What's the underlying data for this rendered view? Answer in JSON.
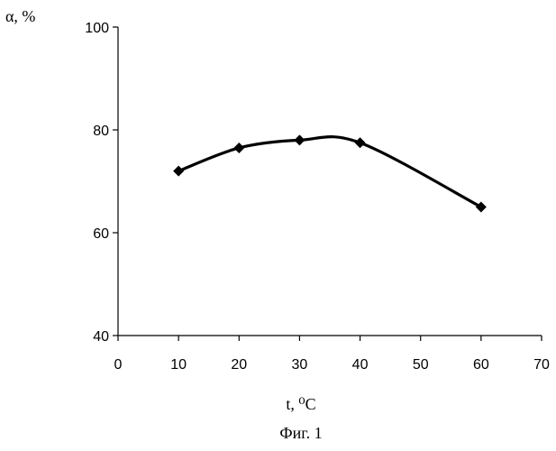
{
  "chart_data": {
    "type": "line",
    "title": "",
    "xlabel": "t, ⁰C",
    "ylabel": "α, %",
    "caption": "Фиг. 1",
    "x": [
      10,
      20,
      30,
      40,
      60
    ],
    "series": [
      {
        "values": [
          72,
          76.5,
          78,
          77.5,
          65
        ]
      }
    ],
    "xlim": [
      0,
      70
    ],
    "ylim": [
      40,
      100
    ],
    "x_ticks": [
      0,
      10,
      20,
      30,
      40,
      50,
      60,
      70
    ],
    "y_ticks": [
      40,
      60,
      80,
      100
    ],
    "x_tick_labels": [
      "0",
      "10",
      "20",
      "30",
      "40",
      "50",
      "60",
      "70"
    ],
    "y_tick_labels": [
      "40",
      "60",
      "80",
      "100"
    ],
    "grid": false,
    "smooth": true,
    "marker": "diamond",
    "line_color": "#000000"
  }
}
